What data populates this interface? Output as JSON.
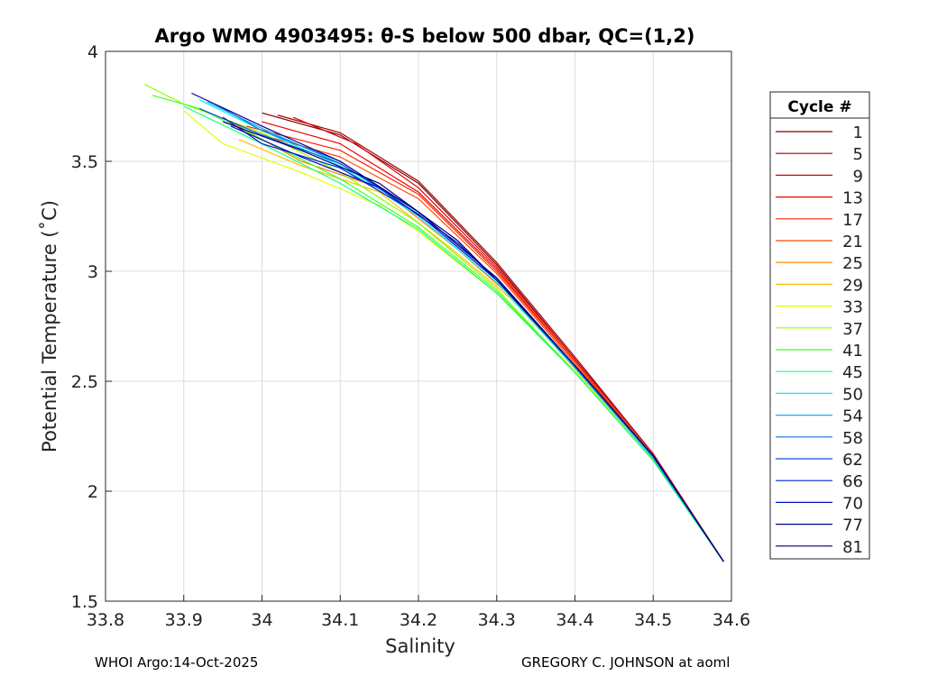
{
  "chart_data": {
    "type": "line",
    "title": "Argo WMO 4903495: θ-S below 500 dbar,  QC=(1,2)",
    "xlabel": "Salinity",
    "ylabel": "Potential Temperature (˚C)",
    "xlim": [
      33.8,
      34.6
    ],
    "ylim": [
      1.5,
      4
    ],
    "xticks": [
      "33.8",
      "33.9",
      "34",
      "34.1",
      "34.2",
      "34.3",
      "34.4",
      "34.5",
      "34.6"
    ],
    "yticks": [
      "1.5",
      "2",
      "2.5",
      "3",
      "3.5",
      "4"
    ],
    "grid": true,
    "legend": {
      "title": "Cycle #",
      "placement": "outside-right"
    },
    "series": [
      {
        "name": "1",
        "color": "#800000",
        "points": [
          [
            34.0,
            3.72
          ],
          [
            34.1,
            3.62
          ],
          [
            34.2,
            3.4
          ],
          [
            34.3,
            3.03
          ],
          [
            34.4,
            2.6
          ],
          [
            34.5,
            2.17
          ],
          [
            34.59,
            1.68
          ]
        ]
      },
      {
        "name": "5",
        "color": "#a00000",
        "points": [
          [
            34.02,
            3.71
          ],
          [
            34.1,
            3.63
          ],
          [
            34.2,
            3.41
          ],
          [
            34.3,
            3.04
          ],
          [
            34.4,
            2.61
          ],
          [
            34.5,
            2.17
          ],
          [
            34.59,
            1.68
          ]
        ]
      },
      {
        "name": "9",
        "color": "#d80000",
        "points": [
          [
            34.04,
            3.7
          ],
          [
            34.12,
            3.58
          ],
          [
            34.2,
            3.38
          ],
          [
            34.3,
            3.02
          ],
          [
            34.4,
            2.6
          ],
          [
            34.5,
            2.17
          ],
          [
            34.59,
            1.68
          ]
        ]
      },
      {
        "name": "13",
        "color": "#f00000",
        "points": [
          [
            34.0,
            3.68
          ],
          [
            34.1,
            3.58
          ],
          [
            34.2,
            3.36
          ],
          [
            34.3,
            3.01
          ],
          [
            34.4,
            2.59
          ],
          [
            34.5,
            2.16
          ],
          [
            34.59,
            1.68
          ]
        ]
      },
      {
        "name": "17",
        "color": "#ff2000",
        "points": [
          [
            33.98,
            3.66
          ],
          [
            34.1,
            3.55
          ],
          [
            34.2,
            3.35
          ],
          [
            34.3,
            3.0
          ],
          [
            34.4,
            2.59
          ],
          [
            34.5,
            2.16
          ],
          [
            34.59,
            1.68
          ]
        ]
      },
      {
        "name": "21",
        "color": "#ff4a00",
        "points": [
          [
            34.0,
            3.62
          ],
          [
            34.1,
            3.52
          ],
          [
            34.2,
            3.33
          ],
          [
            34.3,
            2.99
          ],
          [
            34.4,
            2.58
          ],
          [
            34.5,
            2.16
          ],
          [
            34.59,
            1.68
          ]
        ]
      },
      {
        "name": "25",
        "color": "#ff8000",
        "points": [
          [
            33.95,
            3.7
          ],
          [
            34.05,
            3.5
          ],
          [
            34.15,
            3.38
          ],
          [
            34.25,
            3.1
          ],
          [
            34.32,
            2.88
          ],
          [
            34.4,
            2.56
          ],
          [
            34.5,
            2.15
          ],
          [
            34.59,
            1.68
          ]
        ]
      },
      {
        "name": "29",
        "color": "#ffc000",
        "points": [
          [
            33.97,
            3.6
          ],
          [
            34.05,
            3.48
          ],
          [
            34.15,
            3.36
          ],
          [
            34.25,
            3.08
          ],
          [
            34.32,
            2.87
          ],
          [
            34.4,
            2.56
          ],
          [
            34.5,
            2.15
          ],
          [
            34.59,
            1.68
          ]
        ]
      },
      {
        "name": "33",
        "color": "#e0ff00",
        "points": [
          [
            33.9,
            3.73
          ],
          [
            33.95,
            3.58
          ],
          [
            34.05,
            3.45
          ],
          [
            34.15,
            3.3
          ],
          [
            34.2,
            3.18
          ],
          [
            34.3,
            2.9
          ],
          [
            34.4,
            2.55
          ],
          [
            34.5,
            2.14
          ],
          [
            34.59,
            1.68
          ]
        ]
      },
      {
        "name": "37",
        "color": "#90ff00",
        "points": [
          [
            33.85,
            3.85
          ],
          [
            33.9,
            3.76
          ],
          [
            34.0,
            3.63
          ],
          [
            34.1,
            3.45
          ],
          [
            34.2,
            3.22
          ],
          [
            34.3,
            2.92
          ],
          [
            34.4,
            2.54
          ],
          [
            34.5,
            2.14
          ],
          [
            34.59,
            1.68
          ]
        ]
      },
      {
        "name": "41",
        "color": "#40ff20",
        "points": [
          [
            33.86,
            3.8
          ],
          [
            33.92,
            3.74
          ],
          [
            34.0,
            3.6
          ],
          [
            34.1,
            3.42
          ],
          [
            34.2,
            3.2
          ],
          [
            34.3,
            2.91
          ],
          [
            34.4,
            2.54
          ],
          [
            34.5,
            2.14
          ],
          [
            34.59,
            1.68
          ]
        ]
      },
      {
        "name": "45",
        "color": "#10ff80",
        "points": [
          [
            33.9,
            3.75
          ],
          [
            34.0,
            3.58
          ],
          [
            34.1,
            3.4
          ],
          [
            34.2,
            3.19
          ],
          [
            34.3,
            2.9
          ],
          [
            34.4,
            2.54
          ],
          [
            34.5,
            2.14
          ],
          [
            34.59,
            1.68
          ]
        ]
      },
      {
        "name": "50",
        "color": "#00f0f0",
        "points": [
          [
            33.92,
            3.78
          ],
          [
            34.0,
            3.64
          ],
          [
            34.1,
            3.48
          ],
          [
            34.2,
            3.25
          ],
          [
            34.3,
            2.95
          ],
          [
            34.4,
            2.56
          ],
          [
            34.5,
            2.15
          ],
          [
            34.59,
            1.68
          ]
        ]
      },
      {
        "name": "54",
        "color": "#10b0f0",
        "points": [
          [
            33.93,
            3.77
          ],
          [
            34.0,
            3.65
          ],
          [
            34.1,
            3.49
          ],
          [
            34.2,
            3.26
          ],
          [
            34.3,
            2.96
          ],
          [
            34.4,
            2.56
          ],
          [
            34.5,
            2.15
          ],
          [
            34.59,
            1.68
          ]
        ]
      },
      {
        "name": "58",
        "color": "#1070e0",
        "points": [
          [
            33.94,
            3.76
          ],
          [
            34.0,
            3.64
          ],
          [
            34.1,
            3.5
          ],
          [
            34.2,
            3.27
          ],
          [
            34.3,
            2.97
          ],
          [
            34.4,
            2.57
          ],
          [
            34.5,
            2.16
          ],
          [
            34.59,
            1.68
          ]
        ]
      },
      {
        "name": "62",
        "color": "#1050e0",
        "points": [
          [
            33.92,
            3.74
          ],
          [
            34.0,
            3.62
          ],
          [
            34.1,
            3.49
          ],
          [
            34.2,
            3.27
          ],
          [
            34.3,
            2.97
          ],
          [
            34.4,
            2.57
          ],
          [
            34.5,
            2.16
          ],
          [
            34.59,
            1.68
          ]
        ]
      },
      {
        "name": "66",
        "color": "#0020d0",
        "points": [
          [
            33.95,
            3.7
          ],
          [
            34.0,
            3.58
          ],
          [
            34.1,
            3.47
          ],
          [
            34.2,
            3.26
          ],
          [
            34.3,
            2.96
          ],
          [
            34.4,
            2.57
          ],
          [
            34.5,
            2.16
          ],
          [
            34.59,
            1.68
          ]
        ]
      },
      {
        "name": "70",
        "color": "#0010c0",
        "points": [
          [
            33.96,
            3.66
          ],
          [
            34.05,
            3.52
          ],
          [
            34.15,
            3.38
          ],
          [
            34.25,
            3.13
          ],
          [
            34.3,
            2.96
          ],
          [
            34.4,
            2.57
          ],
          [
            34.5,
            2.16
          ],
          [
            34.59,
            1.68
          ]
        ]
      },
      {
        "name": "77",
        "color": "#000090",
        "points": [
          [
            33.91,
            3.81
          ],
          [
            34.0,
            3.66
          ],
          [
            34.1,
            3.5
          ],
          [
            34.2,
            3.27
          ],
          [
            34.3,
            2.97
          ],
          [
            34.4,
            2.57
          ],
          [
            34.5,
            2.16
          ],
          [
            34.59,
            1.68
          ]
        ]
      },
      {
        "name": "81",
        "color": "#000070",
        "points": [
          [
            33.95,
            3.68
          ],
          [
            34.05,
            3.55
          ],
          [
            34.15,
            3.4
          ],
          [
            34.25,
            3.14
          ],
          [
            34.3,
            2.96
          ],
          [
            34.4,
            2.57
          ],
          [
            34.5,
            2.16
          ],
          [
            34.59,
            1.68
          ]
        ]
      }
    ]
  },
  "footer": {
    "left": "WHOI Argo:14-Oct-2025",
    "right": "GREGORY C. JOHNSON at aoml"
  }
}
